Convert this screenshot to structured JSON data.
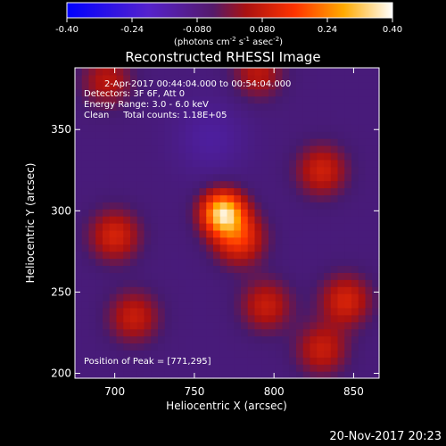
{
  "colorbar": {
    "ticks": [
      "-0.40",
      "-0.24",
      "-0.080",
      "0.080",
      "0.24",
      "0.40"
    ],
    "range": [
      -0.4,
      0.4
    ],
    "unit_parts": [
      "(photons cm",
      "-2",
      " s",
      "-1",
      " asec",
      "-2",
      ")"
    ]
  },
  "title": "Reconstructed RHESSI Image",
  "info_lines": [
    "2-Apr-2017 00:44:04.000 to 00:54:04.000",
    "Detectors: 3F 6F, Att 0",
    "Energy Range: 3.0 - 6.0 keV",
    "Clean     Total counts: 1.18E+05"
  ],
  "peak_label": "Position of Peak = [771,295]",
  "timestamp": "20-Nov-2017 20:23",
  "chart_data": {
    "type": "heatmap",
    "title": "Reconstructed RHESSI Image",
    "xlabel": "Heliocentric X (arcsec)",
    "ylabel": "Heliocentric Y (arcsec)",
    "xlim": [
      675,
      866
    ],
    "ylim": [
      197,
      388
    ],
    "x_ticks": [
      700,
      750,
      800,
      850
    ],
    "y_ticks": [
      200,
      250,
      300,
      350
    ],
    "colorscale": "RHESSI flux: blue (-0.40) to purple to red to yellow to white (0.40)",
    "peak": {
      "x": 771,
      "y": 295
    },
    "sources": [
      {
        "x": 768,
        "y": 299,
        "level": 0.4
      },
      {
        "x": 778,
        "y": 283,
        "level": 0.2
      },
      {
        "x": 830,
        "y": 325,
        "level": 0.15
      },
      {
        "x": 845,
        "y": 245,
        "level": 0.16
      },
      {
        "x": 795,
        "y": 242,
        "level": 0.14
      },
      {
        "x": 700,
        "y": 285,
        "level": 0.16
      },
      {
        "x": 712,
        "y": 235,
        "level": 0.14
      },
      {
        "x": 695,
        "y": 380,
        "level": 0.12
      },
      {
        "x": 790,
        "y": 385,
        "level": 0.12
      },
      {
        "x": 830,
        "y": 215,
        "level": 0.14
      }
    ]
  }
}
